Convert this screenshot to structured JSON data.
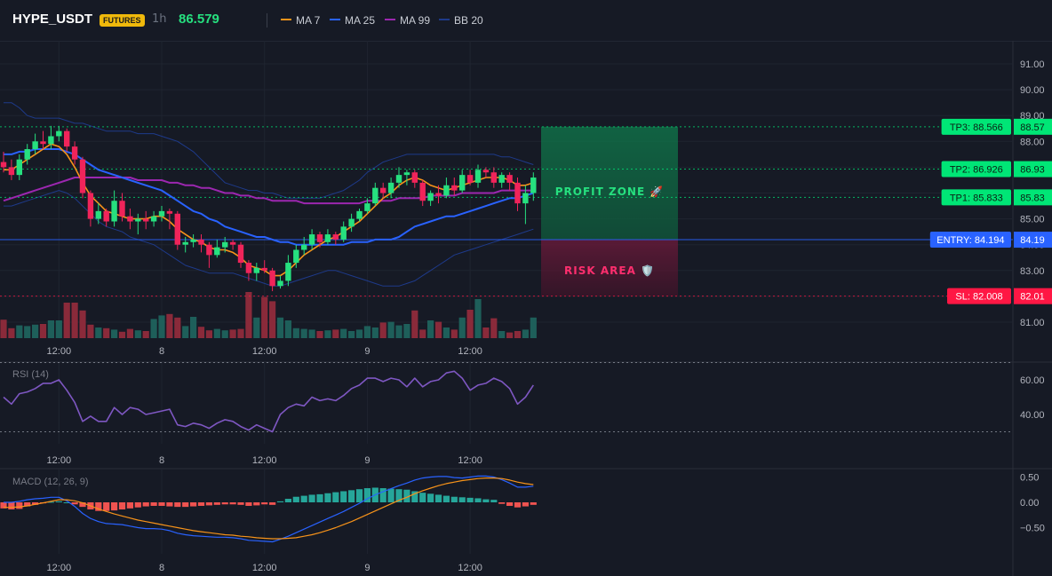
{
  "header": {
    "symbol": "HYPE_USDT",
    "badge": "FUTURES",
    "interval": "1h",
    "price": "86.579"
  },
  "legend": [
    {
      "name": "MA 7",
      "color": "#f7931a"
    },
    {
      "name": "MA 25",
      "color": "#2962ff"
    },
    {
      "name": "MA 99",
      "color": "#9c27b0"
    },
    {
      "name": "BB 20",
      "color": "#1e3a8a"
    }
  ],
  "zones": {
    "profit_label": "PROFIT ZONE 🚀",
    "risk_label": "RISK AREA 🛡️"
  },
  "levels": [
    {
      "label": "TP3: 88.566",
      "axis": "88.57",
      "value": 88.566,
      "kind": "tp"
    },
    {
      "label": "TP2: 86.926",
      "axis": "86.93",
      "value": 86.926,
      "kind": "tp"
    },
    {
      "label": "TP1: 85.833",
      "axis": "85.83",
      "value": 85.833,
      "kind": "tp"
    },
    {
      "label": "ENTRY: 84.194",
      "axis": "84.19",
      "value": 84.194,
      "kind": "entry"
    },
    {
      "label": "SL: 82.008",
      "axis": "82.01",
      "value": 82.008,
      "kind": "sl"
    }
  ],
  "colors": {
    "up": "#26e07f",
    "down": "#f0245a",
    "vol_up": "#1e5f5a",
    "vol_down": "#8a2a3a",
    "tp": "#00e676",
    "entry": "#2962ff",
    "sl": "#ff1744",
    "rsi": "#7e57c2",
    "macd_line": "#2962ff",
    "signal_line": "#f7931a",
    "hist_pos": "#26a69a",
    "hist_neg": "#ef5350"
  },
  "x_axis": {
    "ticks": [
      {
        "label": "12:00",
        "index": 7
      },
      {
        "label": "8",
        "index": 20
      },
      {
        "label": "12:00",
        "index": 33
      },
      {
        "label": "9",
        "index": 46
      },
      {
        "label": "12:00",
        "index": 59
      }
    ]
  },
  "chart_data": [
    {
      "type": "candlestick",
      "name": "price",
      "y_ticks": [
        "91.00",
        "90.00",
        "89.00",
        "88.00",
        "87.00",
        "86.00",
        "85.00",
        "84.00",
        "83.00",
        "82.00",
        "81.00"
      ],
      "ylim": [
        80.7,
        91.0
      ],
      "candles": [
        [
          87.2,
          87.0,
          87.6,
          86.8
        ],
        [
          87.0,
          86.7,
          87.3,
          86.5
        ],
        [
          86.7,
          87.3,
          87.5,
          86.5
        ],
        [
          87.3,
          87.7,
          87.9,
          87.1
        ],
        [
          87.7,
          88.0,
          88.3,
          87.5
        ],
        [
          88.0,
          87.9,
          88.4,
          87.7
        ],
        [
          87.9,
          88.2,
          88.6,
          87.7
        ],
        [
          88.2,
          88.4,
          88.6,
          88.0
        ],
        [
          88.4,
          87.8,
          88.5,
          87.6
        ],
        [
          87.8,
          87.3,
          88.0,
          87.1
        ],
        [
          87.3,
          86.0,
          87.4,
          85.8
        ],
        [
          86.0,
          85.0,
          86.1,
          84.7
        ],
        [
          85.0,
          85.3,
          85.6,
          84.8
        ],
        [
          85.3,
          84.9,
          85.4,
          84.7
        ],
        [
          84.9,
          85.7,
          86.1,
          84.7
        ],
        [
          85.7,
          85.1,
          86.0,
          84.9
        ],
        [
          85.1,
          84.9,
          85.4,
          84.6
        ],
        [
          84.9,
          85.0,
          85.2,
          84.4
        ],
        [
          85.0,
          84.9,
          85.3,
          84.6
        ],
        [
          84.9,
          85.1,
          85.3,
          84.7
        ],
        [
          85.1,
          85.3,
          85.5,
          84.9
        ],
        [
          85.3,
          85.2,
          85.4,
          84.6
        ],
        [
          85.2,
          84.0,
          85.3,
          83.8
        ],
        [
          84.0,
          84.1,
          84.3,
          83.7
        ],
        [
          84.1,
          84.2,
          84.4,
          83.9
        ],
        [
          84.2,
          84.0,
          84.4,
          83.7
        ],
        [
          84.0,
          83.6,
          84.1,
          83.1
        ],
        [
          83.6,
          83.9,
          84.2,
          83.5
        ],
        [
          83.9,
          84.1,
          84.3,
          83.7
        ],
        [
          84.1,
          84.0,
          84.2,
          83.8
        ],
        [
          84.0,
          83.3,
          84.1,
          83.1
        ],
        [
          83.3,
          82.9,
          83.4,
          82.6
        ],
        [
          82.9,
          83.1,
          83.3,
          82.6
        ],
        [
          83.1,
          83.0,
          83.4,
          82.9
        ],
        [
          83.0,
          82.4,
          83.1,
          82.2
        ],
        [
          82.4,
          82.6,
          82.8,
          82.3
        ],
        [
          82.6,
          83.3,
          83.6,
          82.4
        ],
        [
          83.3,
          83.8,
          84.0,
          83.1
        ],
        [
          83.8,
          84.0,
          84.3,
          83.6
        ],
        [
          84.0,
          84.4,
          84.6,
          83.8
        ],
        [
          84.4,
          84.1,
          84.5,
          83.9
        ],
        [
          84.1,
          84.4,
          84.6,
          84.0
        ],
        [
          84.4,
          84.2,
          84.5,
          84.0
        ],
        [
          84.2,
          84.7,
          84.9,
          84.1
        ],
        [
          84.7,
          85.0,
          85.2,
          84.5
        ],
        [
          85.0,
          85.3,
          85.4,
          84.9
        ],
        [
          85.3,
          85.6,
          85.8,
          85.2
        ],
        [
          85.6,
          86.2,
          86.4,
          85.5
        ],
        [
          86.2,
          86.0,
          86.4,
          85.8
        ],
        [
          86.0,
          86.4,
          86.6,
          85.8
        ],
        [
          86.4,
          86.7,
          87.0,
          86.2
        ],
        [
          86.7,
          86.8,
          86.9,
          86.3
        ],
        [
          86.8,
          86.4,
          86.9,
          86.2
        ],
        [
          86.4,
          85.7,
          86.5,
          85.5
        ],
        [
          85.7,
          86.0,
          86.1,
          85.5
        ],
        [
          86.0,
          85.9,
          86.3,
          85.6
        ],
        [
          85.9,
          86.3,
          86.6,
          85.8
        ],
        [
          86.3,
          86.1,
          86.6,
          85.9
        ],
        [
          86.1,
          86.7,
          86.9,
          86.0
        ],
        [
          86.7,
          86.4,
          86.9,
          86.3
        ],
        [
          86.4,
          86.9,
          87.1,
          86.2
        ],
        [
          86.9,
          86.8,
          87.0,
          86.6
        ],
        [
          86.8,
          86.4,
          87.0,
          86.2
        ],
        [
          86.4,
          86.7,
          86.8,
          86.2
        ],
        [
          86.7,
          86.4,
          86.8,
          86.1
        ],
        [
          86.4,
          85.6,
          86.6,
          85.3
        ],
        [
          85.6,
          86.0,
          86.3,
          84.8
        ],
        [
          86.0,
          86.6,
          86.8,
          85.7
        ]
      ],
      "volume": [
        2.6,
        1.4,
        1.8,
        1.7,
        1.9,
        2.0,
        2.5,
        2.5,
        5.0,
        5.0,
        3.9,
        1.9,
        1.5,
        1.4,
        1.2,
        0.9,
        1.3,
        1.1,
        1.0,
        2.7,
        3.2,
        3.4,
        2.9,
        1.7,
        3.0,
        1.6,
        1.1,
        1.3,
        1.1,
        1.2,
        1.3,
        6.5,
        2.9,
        5.8,
        5.2,
        2.9,
        2.5,
        1.4,
        1.3,
        1.2,
        1.0,
        1.1,
        1.2,
        1.3,
        1.0,
        1.2,
        1.7,
        1.5,
        2.2,
        2.3,
        1.8,
        2.0,
        3.9,
        1.2,
        2.5,
        2.3,
        1.5,
        1.2,
        2.9,
        4.0,
        5.5,
        1.5,
        2.8,
        1.0,
        0.8,
        1.0,
        1.2,
        2.9
      ],
      "ma7": [
        86.9,
        86.9,
        87.1,
        87.3,
        87.5,
        87.7,
        87.9,
        87.8,
        87.5,
        87.0,
        86.4,
        85.9,
        85.6,
        85.3,
        85.2,
        85.1,
        85.0,
        85.0,
        85.0,
        85.1,
        85.1,
        84.9,
        84.6,
        84.4,
        84.2,
        84.1,
        83.9,
        83.8,
        83.8,
        83.7,
        83.5,
        83.2,
        83.1,
        83.0,
        82.8,
        82.8,
        83.0,
        83.3,
        83.6,
        83.8,
        84.0,
        84.2,
        84.3,
        84.5,
        84.7,
        84.9,
        85.2,
        85.5,
        85.8,
        86.0,
        86.3,
        86.5,
        86.6,
        86.5,
        86.3,
        86.2,
        86.1,
        86.2,
        86.3,
        86.4,
        86.5,
        86.6,
        86.6,
        86.6,
        86.5,
        86.3,
        86.3,
        86.4
      ],
      "ma25": [
        87.5,
        87.5,
        87.6,
        87.6,
        87.7,
        87.7,
        87.7,
        87.7,
        87.6,
        87.5,
        87.3,
        87.1,
        86.9,
        86.8,
        86.7,
        86.6,
        86.5,
        86.4,
        86.3,
        86.2,
        86.1,
        85.9,
        85.7,
        85.5,
        85.3,
        85.2,
        85.0,
        84.9,
        84.7,
        84.6,
        84.5,
        84.4,
        84.3,
        84.3,
        84.2,
        84.1,
        84.1,
        84.0,
        84.0,
        84.0,
        84.0,
        84.0,
        84.0,
        84.0,
        84.1,
        84.1,
        84.1,
        84.2,
        84.2,
        84.2,
        84.3,
        84.5,
        84.7,
        84.8,
        84.9,
        85.0,
        85.1,
        85.1,
        85.2,
        85.3,
        85.4,
        85.5,
        85.6,
        85.7,
        85.8,
        85.8,
        85.9,
        86.0
      ],
      "ma99": [
        85.7,
        85.8,
        85.9,
        86.0,
        86.1,
        86.2,
        86.3,
        86.4,
        86.5,
        86.6,
        86.6,
        86.6,
        86.6,
        86.6,
        86.6,
        86.6,
        86.6,
        86.5,
        86.5,
        86.5,
        86.5,
        86.4,
        86.4,
        86.3,
        86.3,
        86.2,
        86.2,
        86.1,
        86.0,
        86.0,
        85.9,
        85.9,
        85.8,
        85.8,
        85.7,
        85.7,
        85.7,
        85.7,
        85.6,
        85.6,
        85.6,
        85.6,
        85.6,
        85.6,
        85.6,
        85.6,
        85.7,
        85.7,
        85.7,
        85.7,
        85.8,
        85.8,
        85.8,
        85.8,
        85.9,
        85.9,
        85.9,
        85.9,
        86.0,
        86.0,
        86.0,
        86.0,
        86.0,
        86.1,
        86.1,
        86.1,
        86.1,
        86.1
      ],
      "bb_upper": [
        89.5,
        89.5,
        89.3,
        89.0,
        88.9,
        88.9,
        88.9,
        88.9,
        88.8,
        88.7,
        88.7,
        88.6,
        88.5,
        88.4,
        88.4,
        88.4,
        88.4,
        88.3,
        88.3,
        88.3,
        88.2,
        88.1,
        88.0,
        87.8,
        87.6,
        87.3,
        87.0,
        86.7,
        86.4,
        86.3,
        86.2,
        86.1,
        86.1,
        86.0,
        86.0,
        85.9,
        85.8,
        85.8,
        85.8,
        85.8,
        85.8,
        85.9,
        86.0,
        86.1,
        86.3,
        86.5,
        86.8,
        87.0,
        87.2,
        87.3,
        87.4,
        87.5,
        87.5,
        87.5,
        87.5,
        87.5,
        87.5,
        87.5,
        87.5,
        87.5,
        87.5,
        87.5,
        87.5,
        87.4,
        87.4,
        87.3,
        87.2,
        87.1
      ],
      "bb_lower": [
        85.5,
        85.5,
        85.6,
        85.7,
        85.8,
        85.9,
        86.0,
        86.1,
        86.0,
        85.8,
        85.5,
        85.2,
        84.9,
        84.7,
        84.6,
        84.5,
        84.3,
        84.2,
        84.1,
        84.0,
        83.8,
        83.6,
        83.4,
        83.2,
        83.1,
        83.0,
        82.9,
        82.9,
        82.9,
        82.9,
        82.8,
        82.7,
        82.6,
        82.5,
        82.4,
        82.4,
        82.5,
        82.6,
        82.7,
        82.8,
        82.9,
        83.0,
        83.0,
        82.9,
        82.8,
        82.7,
        82.6,
        82.5,
        82.4,
        82.4,
        82.4,
        82.5,
        82.6,
        82.8,
        83.0,
        83.2,
        83.4,
        83.6,
        83.7,
        83.8,
        83.9,
        84.0,
        84.1,
        84.2,
        84.3,
        84.4,
        84.5,
        84.6
      ]
    },
    {
      "type": "line",
      "name": "RSI (14)",
      "y_ticks": [
        "60.00",
        "40.00"
      ],
      "ylim": [
        20,
        75
      ],
      "levels": [
        70,
        30
      ],
      "values": [
        50,
        46,
        52,
        53,
        55,
        58,
        58,
        60,
        54,
        47,
        36,
        39,
        36,
        36,
        44,
        40,
        44,
        43,
        40,
        41,
        42,
        43,
        34,
        33,
        35,
        34,
        32,
        35,
        37,
        36,
        33,
        31,
        34,
        32,
        30,
        40,
        44,
        46,
        45,
        50,
        48,
        49,
        48,
        51,
        55,
        57,
        61,
        61,
        59,
        61,
        60,
        56,
        61,
        56,
        59,
        60,
        64,
        65,
        61,
        54,
        57,
        58,
        61,
        59,
        55,
        46,
        50,
        57
      ]
    },
    {
      "type": "bar+line",
      "name": "MACD (12, 26, 9)",
      "y_ticks": [
        "0.50",
        "0.00",
        "−0.50"
      ],
      "ylim": [
        -0.82,
        0.6
      ],
      "histogram": [
        -0.12,
        -0.14,
        -0.13,
        -0.08,
        -0.05,
        -0.02,
        0.01,
        0.02,
        0.0,
        -0.04,
        -0.09,
        -0.14,
        -0.17,
        -0.17,
        -0.16,
        -0.14,
        -0.12,
        -0.1,
        -0.08,
        -0.07,
        -0.07,
        -0.08,
        -0.09,
        -0.09,
        -0.08,
        -0.07,
        -0.06,
        -0.05,
        -0.04,
        -0.04,
        -0.05,
        -0.07,
        -0.06,
        -0.04,
        -0.05,
        0.02,
        0.07,
        0.11,
        0.13,
        0.15,
        0.16,
        0.18,
        0.2,
        0.22,
        0.24,
        0.26,
        0.28,
        0.29,
        0.28,
        0.27,
        0.26,
        0.25,
        0.22,
        0.19,
        0.17,
        0.15,
        0.13,
        0.11,
        0.1,
        0.09,
        0.08,
        0.06,
        0.05,
        -0.03,
        -0.07,
        -0.1,
        -0.08,
        -0.05
      ],
      "macd": [
        0.0,
        0.0,
        0.02,
        0.05,
        0.07,
        0.08,
        0.1,
        0.1,
        0.03,
        -0.08,
        -0.22,
        -0.32,
        -0.38,
        -0.42,
        -0.43,
        -0.44,
        -0.47,
        -0.5,
        -0.52,
        -0.52,
        -0.53,
        -0.56,
        -0.61,
        -0.64,
        -0.66,
        -0.67,
        -0.68,
        -0.69,
        -0.69,
        -0.7,
        -0.72,
        -0.75,
        -0.76,
        -0.77,
        -0.78,
        -0.73,
        -0.67,
        -0.6,
        -0.53,
        -0.46,
        -0.39,
        -0.32,
        -0.25,
        -0.18,
        -0.1,
        -0.02,
        0.07,
        0.15,
        0.21,
        0.27,
        0.33,
        0.38,
        0.44,
        0.48,
        0.5,
        0.51,
        0.51,
        0.49,
        0.48,
        0.5,
        0.52,
        0.52,
        0.5,
        0.45,
        0.38,
        0.3,
        0.3,
        0.32
      ],
      "signal": [
        -0.1,
        -0.1,
        -0.09,
        -0.07,
        -0.04,
        -0.01,
        0.02,
        0.05,
        0.05,
        0.03,
        -0.01,
        -0.07,
        -0.13,
        -0.18,
        -0.23,
        -0.27,
        -0.31,
        -0.35,
        -0.38,
        -0.41,
        -0.44,
        -0.47,
        -0.5,
        -0.53,
        -0.56,
        -0.58,
        -0.6,
        -0.62,
        -0.64,
        -0.65,
        -0.67,
        -0.68,
        -0.7,
        -0.71,
        -0.72,
        -0.72,
        -0.71,
        -0.7,
        -0.67,
        -0.64,
        -0.6,
        -0.55,
        -0.5,
        -0.44,
        -0.38,
        -0.31,
        -0.24,
        -0.17,
        -0.1,
        -0.03,
        0.04,
        0.1,
        0.17,
        0.23,
        0.28,
        0.33,
        0.37,
        0.4,
        0.43,
        0.45,
        0.47,
        0.48,
        0.48,
        0.47,
        0.44,
        0.4,
        0.37,
        0.35
      ]
    }
  ]
}
